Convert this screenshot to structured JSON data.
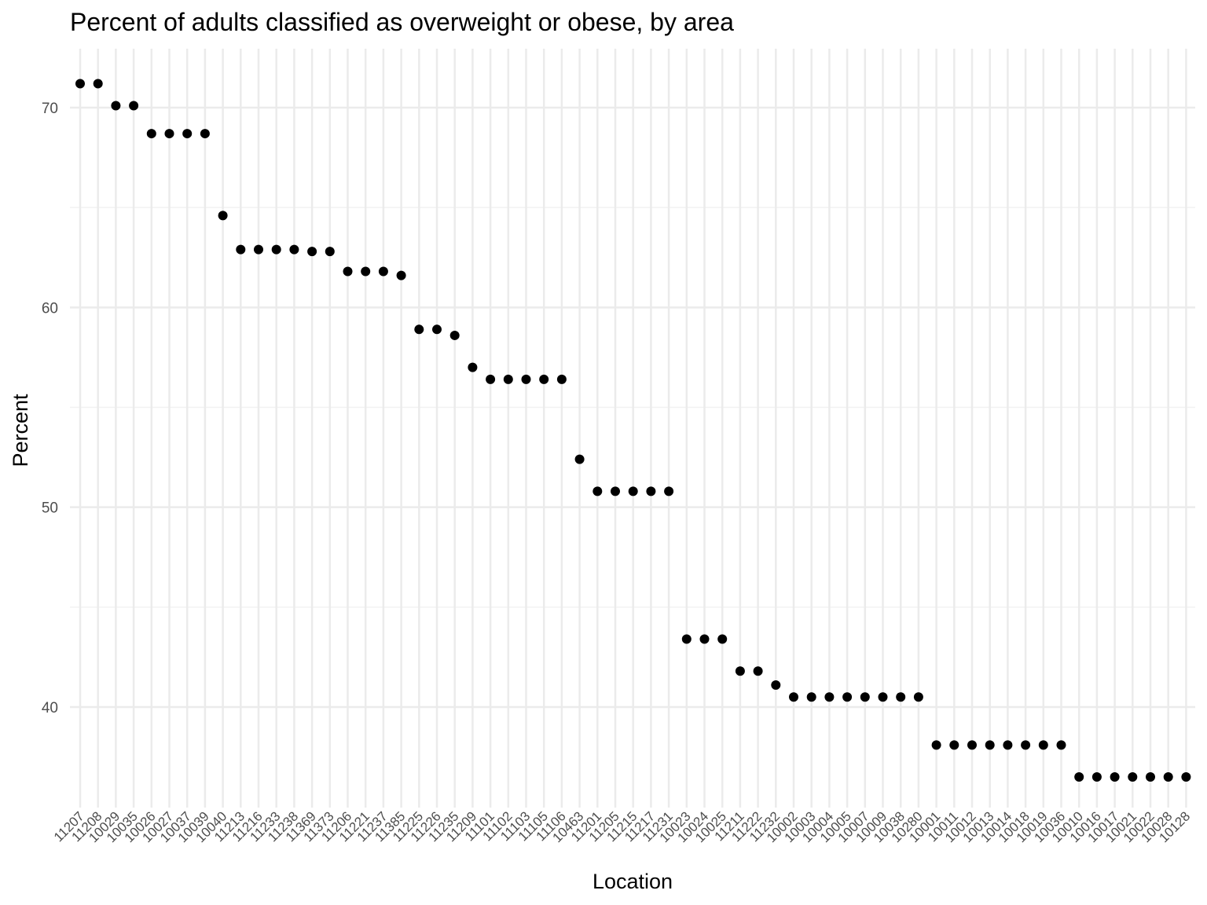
{
  "chart_data": {
    "type": "scatter",
    "title": "Percent of adults classified as overweight or obese, by area",
    "xlabel": "Location",
    "ylabel": "Percent",
    "ylim": [
      35,
      72.9
    ],
    "y_major_ticks": [
      40,
      50,
      60,
      70
    ],
    "y_minor_ticks": [
      45,
      55,
      65
    ],
    "grid": true,
    "legend": "none",
    "point_color": "#000000",
    "grid_major_color": "#ebebeb",
    "grid_minor_color": "#f2f2f2",
    "categories": [
      "11207",
      "11208",
      "10029",
      "10035",
      "10026",
      "10027",
      "10037",
      "10039",
      "10040",
      "11213",
      "11216",
      "11233",
      "11238",
      "11369",
      "11373",
      "11206",
      "11221",
      "11237",
      "11385",
      "11225",
      "11226",
      "11235",
      "11209",
      "11101",
      "11102",
      "11103",
      "11105",
      "11106",
      "10463",
      "11201",
      "11205",
      "11215",
      "11217",
      "11231",
      "10023",
      "10024",
      "10025",
      "11211",
      "11222",
      "11232",
      "10002",
      "10003",
      "10004",
      "10005",
      "10007",
      "10009",
      "10038",
      "10280",
      "10001",
      "10011",
      "10012",
      "10013",
      "10014",
      "10018",
      "10019",
      "10036",
      "10010",
      "10016",
      "10017",
      "10021",
      "10022",
      "10028",
      "10128"
    ],
    "values": [
      71.2,
      71.2,
      70.1,
      70.1,
      68.7,
      68.7,
      68.7,
      68.7,
      64.6,
      62.9,
      62.9,
      62.9,
      62.9,
      62.8,
      62.8,
      61.8,
      61.8,
      61.8,
      61.6,
      58.9,
      58.9,
      58.6,
      57.0,
      56.4,
      56.4,
      56.4,
      56.4,
      56.4,
      52.4,
      50.8,
      50.8,
      50.8,
      50.8,
      50.8,
      43.4,
      43.4,
      43.4,
      41.8,
      41.8,
      41.1,
      40.5,
      40.5,
      40.5,
      40.5,
      40.5,
      40.5,
      40.5,
      40.5,
      38.1,
      38.1,
      38.1,
      38.1,
      38.1,
      38.1,
      38.1,
      38.1,
      36.5,
      36.5,
      36.5,
      36.5,
      36.5,
      36.5,
      36.5
    ]
  }
}
